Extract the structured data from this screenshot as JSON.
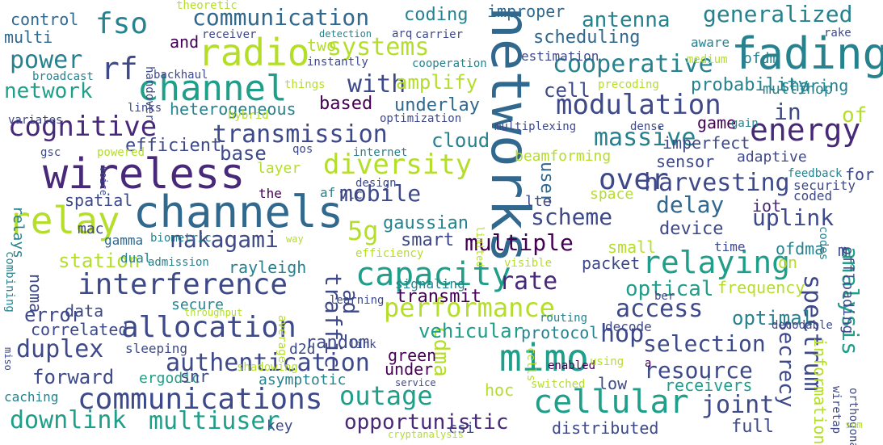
{
  "palette": [
    "#440154",
    "#482878",
    "#3e4989",
    "#31688e",
    "#26828e",
    "#1f9e89",
    "#35b779",
    "#6ece58",
    "#b5de2b",
    "#fde725"
  ],
  "words": [
    {
      "text": "networks",
      "color": "#31688e"
    },
    {
      "text": "channels",
      "color": "#31688e"
    },
    {
      "text": "wireless",
      "color": "#482878"
    },
    {
      "text": "fading",
      "color": "#26828e"
    },
    {
      "text": "radio",
      "color": "#b5de2b"
    },
    {
      "text": "channel",
      "color": "#1f9e89"
    },
    {
      "text": "relay",
      "color": "#b5de2b"
    },
    {
      "text": "capacity",
      "color": "#1f9e89"
    },
    {
      "text": "mimo",
      "color": "#1f9e89"
    },
    {
      "text": "relaying",
      "color": "#1f9e89"
    },
    {
      "text": "cellular",
      "color": "#1f9e89"
    },
    {
      "text": "communications",
      "color": "#3e4989"
    },
    {
      "text": "interference",
      "color": "#3e4989"
    },
    {
      "text": "allocation",
      "color": "#3e4989"
    },
    {
      "text": "cognitive",
      "color": "#482878"
    },
    {
      "text": "modulation",
      "color": "#3e4989"
    },
    {
      "text": "energy",
      "color": "#482878"
    },
    {
      "text": "communication",
      "color": "#31688e"
    },
    {
      "text": "cooperative",
      "color": "#26828e"
    },
    {
      "text": "authentication",
      "color": "#3e4989"
    },
    {
      "text": "diversity",
      "color": "#b5de2b"
    },
    {
      "text": "performance",
      "color": "#b5de2b"
    },
    {
      "text": "outage",
      "color": "#1f9e89"
    },
    {
      "text": "spectrum",
      "color": "#3e4989"
    },
    {
      "text": "fso",
      "color": "#26828e"
    },
    {
      "text": "rf",
      "color": "#3e4989"
    },
    {
      "text": "systems",
      "color": "#b5de2b"
    },
    {
      "text": "power",
      "color": "#26828e"
    },
    {
      "text": "generalized",
      "color": "#26828e"
    },
    {
      "text": "antenna",
      "color": "#26828e"
    },
    {
      "text": "coding",
      "color": "#26828e"
    },
    {
      "text": "improper",
      "color": "#31688e"
    },
    {
      "text": "scheduling",
      "color": "#31688e"
    },
    {
      "text": "two",
      "color": "#b5de2b"
    },
    {
      "text": "and",
      "color": "#440154"
    },
    {
      "text": "control",
      "color": "#31688e"
    },
    {
      "text": "multi",
      "color": "#31688e"
    },
    {
      "text": "network",
      "color": "#1f9e89"
    },
    {
      "text": "with",
      "color": "#3e4989"
    },
    {
      "text": "amplify",
      "color": "#b5de2b"
    },
    {
      "text": "transmission",
      "color": "#3e4989"
    },
    {
      "text": "massive",
      "color": "#26828e"
    },
    {
      "text": "over",
      "color": "#3e4989"
    },
    {
      "text": "harvesting",
      "color": "#3e4989"
    },
    {
      "text": "mobile",
      "color": "#3e4989"
    },
    {
      "text": "delay",
      "color": "#31688e"
    },
    {
      "text": "scheme",
      "color": "#3e4989"
    },
    {
      "text": "uplink",
      "color": "#3e4989"
    },
    {
      "text": "nakagami",
      "color": "#3e4989"
    },
    {
      "text": "5g",
      "color": "#b5de2b"
    },
    {
      "text": "multiple",
      "color": "#440154"
    },
    {
      "text": "station",
      "color": "#b5de2b"
    },
    {
      "text": "rate",
      "color": "#482878"
    },
    {
      "text": "access",
      "color": "#3e4989"
    },
    {
      "text": "analysis",
      "color": "#1f9e89"
    },
    {
      "text": "duplex",
      "color": "#3e4989"
    },
    {
      "text": "forward",
      "color": "#3e4989"
    },
    {
      "text": "hop",
      "color": "#3e4989"
    },
    {
      "text": "selection",
      "color": "#3e4989"
    },
    {
      "text": "resource",
      "color": "#3e4989"
    },
    {
      "text": "joint",
      "color": "#3e4989"
    },
    {
      "text": "downlink",
      "color": "#1f9e89"
    },
    {
      "text": "multiuser",
      "color": "#1f9e89"
    },
    {
      "text": "opportunistic",
      "color": "#482878"
    },
    {
      "text": "cdma",
      "color": "#b5de2b"
    },
    {
      "text": "traffic",
      "color": "#3e4989"
    },
    {
      "text": "secrecy",
      "color": "#3e4989"
    },
    {
      "text": "user",
      "color": "#31688e"
    },
    {
      "text": "in",
      "color": "#3e4989"
    },
    {
      "text": "of",
      "color": "#b5de2b"
    },
    {
      "text": "cell",
      "color": "#3e4989"
    },
    {
      "text": "probability",
      "color": "#26828e"
    },
    {
      "text": "sharing",
      "color": "#26828e"
    },
    {
      "text": "heterogeneous",
      "color": "#26828e"
    },
    {
      "text": "based",
      "color": "#440154"
    },
    {
      "text": "underlay",
      "color": "#31688e"
    },
    {
      "text": "efficient",
      "color": "#3e4989"
    },
    {
      "text": "base",
      "color": "#3e4989"
    },
    {
      "text": "cloud",
      "color": "#26828e"
    },
    {
      "text": "game",
      "color": "#440154"
    },
    {
      "text": "imperfect",
      "color": "#3e4989"
    },
    {
      "text": "adaptive",
      "color": "#3e4989"
    },
    {
      "text": "sensor",
      "color": "#3e4989"
    },
    {
      "text": "beamforming",
      "color": "#b5de2b"
    },
    {
      "text": "layer",
      "color": "#b5de2b"
    },
    {
      "text": "gaussian",
      "color": "#26828e"
    },
    {
      "text": "smart",
      "color": "#3e4989"
    },
    {
      "text": "device",
      "color": "#3e4989"
    },
    {
      "text": "iot",
      "color": "#482878"
    },
    {
      "text": "rayleigh",
      "color": "#26828e"
    },
    {
      "text": "noma",
      "color": "#3e4989"
    },
    {
      "text": "optical",
      "color": "#1f9e89"
    },
    {
      "text": "frequency",
      "color": "#b5de2b"
    },
    {
      "text": "transmit",
      "color": "#440154"
    },
    {
      "text": "optimal",
      "color": "#26828e"
    },
    {
      "text": "vehicular",
      "color": "#1f9e89"
    },
    {
      "text": "protocol",
      "color": "#26828e"
    },
    {
      "text": "error",
      "color": "#3e4989"
    },
    {
      "text": "data",
      "color": "#3e4989"
    },
    {
      "text": "correlated",
      "color": "#3e4989"
    },
    {
      "text": "random",
      "color": "#3e4989"
    },
    {
      "text": "green",
      "color": "#440154"
    },
    {
      "text": "under",
      "color": "#440154"
    },
    {
      "text": "low",
      "color": "#3e4989"
    },
    {
      "text": "hoc",
      "color": "#b5de2b"
    },
    {
      "text": "ad",
      "color": "#3e4989"
    },
    {
      "text": "full",
      "color": "#3e4989"
    },
    {
      "text": "information",
      "color": "#b5de2b"
    },
    {
      "text": "secure",
      "color": "#26828e"
    },
    {
      "text": "d2d",
      "color": "#3e4989"
    },
    {
      "text": "ergodic",
      "color": "#1f9e89"
    },
    {
      "text": "snr",
      "color": "#3e4989"
    },
    {
      "text": "asymptotic",
      "color": "#26828e"
    },
    {
      "text": "receivers",
      "color": "#1f9e89"
    },
    {
      "text": "caching",
      "color": "#26828e"
    },
    {
      "text": "csi",
      "color": "#3e4989"
    },
    {
      "text": "distributed",
      "color": "#3e4989"
    },
    {
      "text": "key",
      "color": "#3e4989"
    },
    {
      "text": "the",
      "color": "#440154"
    },
    {
      "text": "af",
      "color": "#26828e"
    },
    {
      "text": "vlc",
      "color": "#3e4989"
    },
    {
      "text": "spatial",
      "color": "#3e4989"
    },
    {
      "text": "relays",
      "color": "#26828e"
    },
    {
      "text": "mac",
      "color": "#3e4989"
    },
    {
      "text": "gamma",
      "color": "#31688e"
    },
    {
      "text": "biometric",
      "color": "#26828e"
    },
    {
      "text": "dual",
      "color": "#26828e"
    },
    {
      "text": "admission",
      "color": "#26828e"
    },
    {
      "text": "efficiency",
      "color": "#b5de2b"
    },
    {
      "text": "signaling",
      "color": "#26828e"
    },
    {
      "text": "combining",
      "color": "#26828e"
    },
    {
      "text": "sleeping",
      "color": "#3e4989"
    },
    {
      "text": "shadowing",
      "color": "#b5de2b"
    },
    {
      "text": "throughput",
      "color": "#b5de2b"
    },
    {
      "text": "learning",
      "color": "#3e4989"
    },
    {
      "text": "link",
      "color": "#3e4989"
    },
    {
      "text": "average",
      "color": "#b5de2b"
    },
    {
      "text": "packet",
      "color": "#3e4989"
    },
    {
      "text": "ber",
      "color": "#3e4989"
    },
    {
      "text": "visible",
      "color": "#b5de2b"
    },
    {
      "text": "routing",
      "color": "#26828e"
    },
    {
      "text": "decode",
      "color": "#3e4989"
    },
    {
      "text": "decodable",
      "color": "#3e4989"
    },
    {
      "text": "enabled",
      "color": "#440154"
    },
    {
      "text": "cells",
      "color": "#b5de2b"
    },
    {
      "text": "using",
      "color": "#b5de2b"
    },
    {
      "text": "switched",
      "color": "#b5de2b"
    },
    {
      "text": "service",
      "color": "#3e4989"
    },
    {
      "text": "cryptanalysis",
      "color": "#b5de2b"
    },
    {
      "text": "small",
      "color": "#b5de2b"
    },
    {
      "text": "time",
      "color": "#3e4989"
    },
    {
      "text": "ofdma",
      "color": "#26828e"
    },
    {
      "text": "coded",
      "color": "#3e4989"
    },
    {
      "text": "security",
      "color": "#3e4989"
    },
    {
      "text": "space",
      "color": "#b5de2b"
    },
    {
      "text": "lte",
      "color": "#3e4989"
    },
    {
      "text": "offloading",
      "color": "#3e4989"
    },
    {
      "text": "codes",
      "color": "#26828e"
    },
    {
      "text": "wiretap",
      "color": "#3e4989"
    },
    {
      "text": "orthogonal",
      "color": "#3e4989"
    },
    {
      "text": "sum",
      "color": "#b5de2b"
    },
    {
      "text": "a",
      "color": "#440154"
    },
    {
      "text": "for",
      "color": "#3e4989"
    },
    {
      "text": "on",
      "color": "#b5de2b"
    },
    {
      "text": "m",
      "color": "#3e4989"
    },
    {
      "text": "feedback",
      "color": "#26828e"
    },
    {
      "text": "multihop",
      "color": "#26828e"
    },
    {
      "text": "gain",
      "color": "#26828e"
    },
    {
      "text": "dense",
      "color": "#3e4989"
    },
    {
      "text": "multiplexing",
      "color": "#3e4989"
    },
    {
      "text": "precoding",
      "color": "#b5de2b"
    },
    {
      "text": "medium",
      "color": "#b5de2b"
    },
    {
      "text": "ofdm",
      "color": "#26828e"
    },
    {
      "text": "aware",
      "color": "#26828e"
    },
    {
      "text": "estimation",
      "color": "#3e4989"
    },
    {
      "text": "cooperation",
      "color": "#26828e"
    },
    {
      "text": "instantly",
      "color": "#3e4989"
    },
    {
      "text": "links",
      "color": "#3e4989"
    },
    {
      "text": "backhaul",
      "color": "#3e4989"
    },
    {
      "text": "broadcast",
      "color": "#26828e"
    },
    {
      "text": "handover",
      "color": "#3e4989"
    },
    {
      "text": "things",
      "color": "#b5de2b"
    },
    {
      "text": "hybrid",
      "color": "#b5de2b"
    },
    {
      "text": "optimization",
      "color": "#3e4989"
    },
    {
      "text": "variates",
      "color": "#3e4989"
    },
    {
      "text": "gsc",
      "color": "#3e4989"
    },
    {
      "text": "powered",
      "color": "#b5de2b"
    },
    {
      "text": "voice",
      "color": "#3e4989"
    },
    {
      "text": "qos",
      "color": "#3e4989"
    },
    {
      "text": "internet",
      "color": "#26828e"
    },
    {
      "text": "design",
      "color": "#3e4989"
    },
    {
      "text": "limited",
      "color": "#b5de2b"
    },
    {
      "text": "way",
      "color": "#b5de2b"
    },
    {
      "text": "miso",
      "color": "#3e4989"
    },
    {
      "text": "theoretic",
      "color": "#b5de2b"
    },
    {
      "text": "arq",
      "color": "#3e4989"
    },
    {
      "text": "receiver",
      "color": "#3e4989"
    },
    {
      "text": "detection",
      "color": "#26828e"
    },
    {
      "text": "carrier",
      "color": "#3e4989"
    },
    {
      "text": "rake",
      "color": "#3e4989"
    }
  ]
}
